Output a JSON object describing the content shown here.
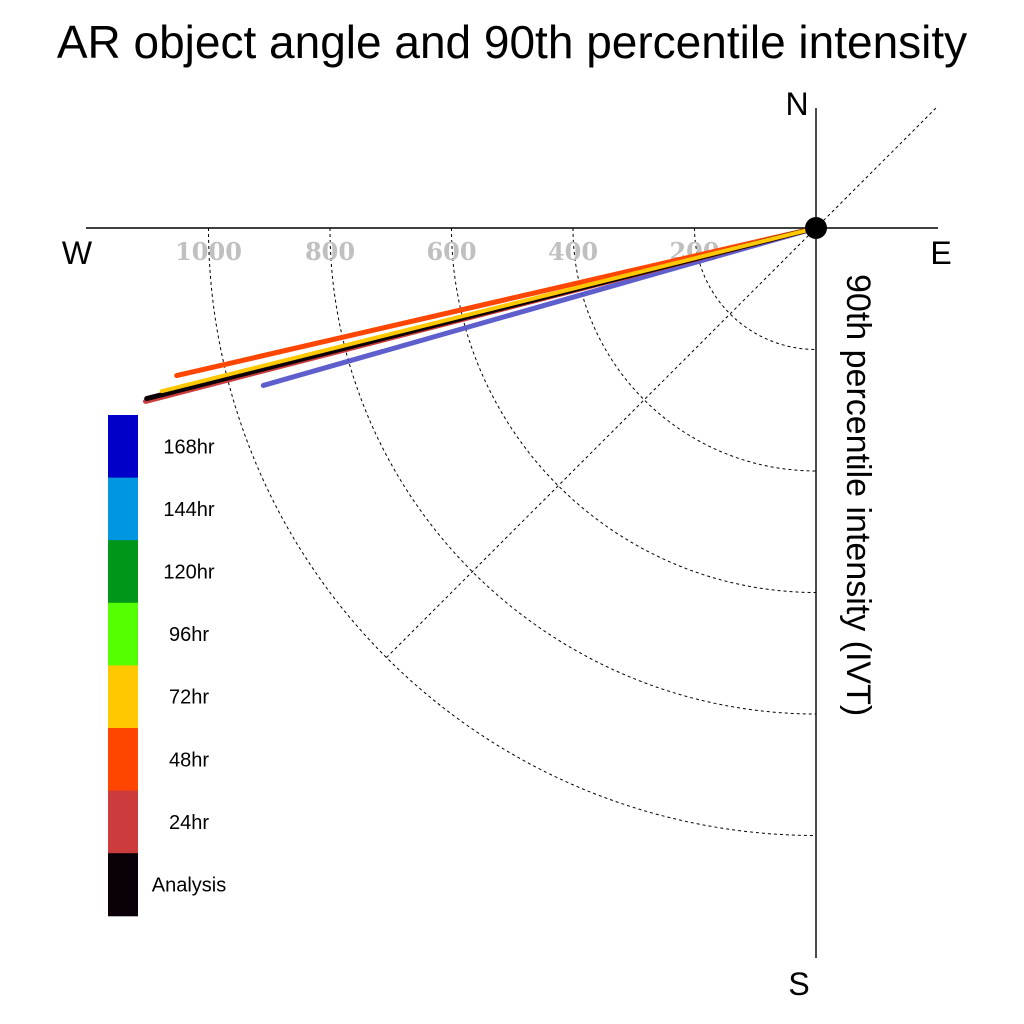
{
  "chart_data": {
    "type": "polar-line",
    "title": "AR object angle and 90th percentile intensity",
    "ylabel": "90th percentile intensity (IVT)",
    "compass": {
      "north": "N",
      "south": "S",
      "east": "E",
      "west": "W"
    },
    "radial_ticks": [
      200,
      400,
      600,
      800,
      1000
    ],
    "rings": [
      200,
      400,
      600,
      800,
      1000
    ],
    "grid": true,
    "colorbar": [
      {
        "label": "168hr",
        "color": "#0000c8"
      },
      {
        "label": "144hr",
        "color": "#0096e1"
      },
      {
        "label": "120hr",
        "color": "#009619"
      },
      {
        "label": "96hr",
        "color": "#55ff00"
      },
      {
        "label": "72hr",
        "color": "#ffc800"
      },
      {
        "label": "48hr",
        "color": "#ff4600"
      },
      {
        "label": "24hr",
        "color": "#cd3c3c"
      },
      {
        "label": "Analysis",
        "color": "#0a0008"
      }
    ],
    "series": [
      {
        "name": "168hr",
        "color": "#4c4cc8",
        "angle_deg": 15.9,
        "intensity": 946
      },
      {
        "name": "48hr",
        "color": "#ff4600",
        "angle_deg": 13.0,
        "intensity": 1080
      },
      {
        "name": "24hr",
        "color": "#cd3c3c",
        "angle_deg": 14.5,
        "intensity": 1140
      },
      {
        "name": "Analysis",
        "color": "#0a0008",
        "angle_deg": 14.3,
        "intensity": 1137
      },
      {
        "name": "72hr",
        "color": "#ffc800",
        "angle_deg": 14.0,
        "intensity": 1110
      }
    ]
  }
}
